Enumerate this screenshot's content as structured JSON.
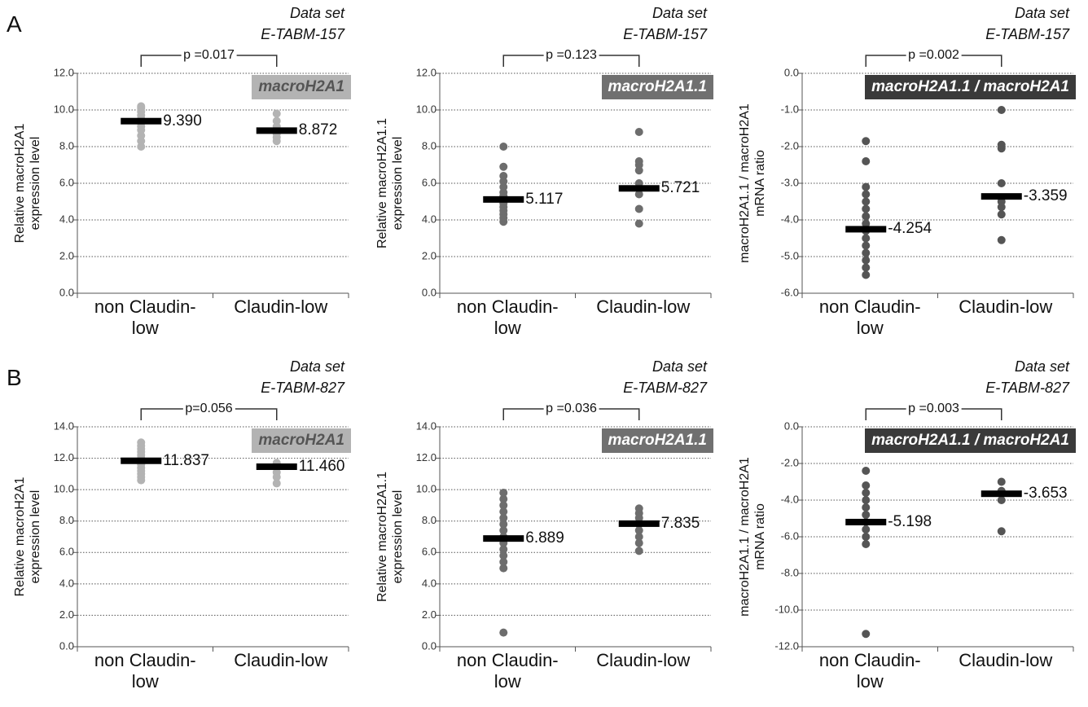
{
  "chart_data": [
    {
      "type": "strip",
      "panel": "A",
      "dataset_label": "Data set",
      "dataset_id": "E-TABM-157",
      "badge": "macroH2A1",
      "badge_color": "#b3b3b3",
      "badge_text_color": "#555555",
      "pvalue": "p =0.017",
      "ylabel": "Relative macroH2A1 expression level",
      "categories": [
        "non Claudin-low",
        "Claudin-low"
      ],
      "color": "#b3b3b3",
      "points": [
        [
          8.0,
          8.3,
          8.6,
          8.9,
          9.1,
          9.3,
          9.5,
          9.7,
          9.9,
          10.1,
          10.2
        ],
        [
          8.3,
          8.5,
          8.7,
          8.9,
          9.1,
          9.4,
          9.8
        ]
      ],
      "means": [
        9.39,
        8.872
      ],
      "mean_labels": [
        "9.390",
        "8.872"
      ],
      "ylim": [
        0,
        12
      ],
      "yticks": [
        {
          "value": 0,
          "label": "0.0"
        },
        {
          "value": 2,
          "label": "2.0"
        },
        {
          "value": 4,
          "label": "4.0"
        },
        {
          "value": 6,
          "label": "6.0"
        },
        {
          "value": 8,
          "label": "8.0"
        },
        {
          "value": 10,
          "label": "10.0"
        },
        {
          "value": 12,
          "label": "12.0"
        }
      ],
      "grid": true
    },
    {
      "type": "strip",
      "dataset_label": "Data set",
      "dataset_id": "E-TABM-157",
      "badge": "macroH2A1.1",
      "badge_color": "#707070",
      "badge_text_color": "#ffffff",
      "pvalue": "p =0.123",
      "ylabel": "Relative macroH2A1.1 expression level",
      "categories": [
        "non Claudin-low",
        "Claudin-low"
      ],
      "color": "#6d6d6d",
      "points": [
        [
          3.9,
          4.1,
          4.3,
          4.5,
          4.7,
          4.9,
          5.1,
          5.3,
          5.5,
          5.8,
          6.1,
          6.4,
          6.9,
          8.0
        ],
        [
          3.8,
          4.6,
          5.4,
          5.7,
          6.0,
          6.7,
          7.0,
          7.2,
          8.8
        ]
      ],
      "means": [
        5.117,
        5.721
      ],
      "mean_labels": [
        "5.117",
        "5.721"
      ],
      "ylim": [
        0,
        12
      ],
      "yticks": [
        {
          "value": 0,
          "label": "0.0"
        },
        {
          "value": 2,
          "label": "2.0"
        },
        {
          "value": 4,
          "label": "4.0"
        },
        {
          "value": 6,
          "label": "6.0"
        },
        {
          "value": 8,
          "label": "8.0"
        },
        {
          "value": 10,
          "label": "10.0"
        },
        {
          "value": 12,
          "label": "12.0"
        }
      ],
      "grid": true
    },
    {
      "type": "strip",
      "dataset_label": "Data set",
      "dataset_id": "E-TABM-157",
      "badge": "macroH2A1.1 / macroH2A1",
      "badge_color": "#3a3a3a",
      "badge_text_color": "#ffffff",
      "pvalue": "p =0.002",
      "ylabel": "macroH2A1.1 / macroH2A1 mRNA ratio",
      "categories": [
        "non Claudin-low",
        "Claudin-low"
      ],
      "color": "#555555",
      "points": [
        [
          -5.5,
          -5.3,
          -5.1,
          -4.9,
          -4.7,
          -4.5,
          -4.3,
          -4.1,
          -3.9,
          -3.7,
          -3.5,
          -3.3,
          -3.1,
          -2.4,
          -1.85
        ],
        [
          -4.55,
          -3.85,
          -3.65,
          -3.5,
          -3.0,
          -2.05,
          -1.95,
          -1.0
        ]
      ],
      "means": [
        -4.254,
        -3.359
      ],
      "mean_labels": [
        "-4.254",
        "-3.359"
      ],
      "ylim": [
        -6,
        0
      ],
      "yticks": [
        {
          "value": 0,
          "label": "0.0"
        },
        {
          "value": -1,
          "label": "-1.0"
        },
        {
          "value": -2,
          "label": "-2.0"
        },
        {
          "value": -3,
          "label": "-3.0"
        },
        {
          "value": -4,
          "label": "-4.0"
        },
        {
          "value": -5,
          "label": "-5.0"
        },
        {
          "value": -6,
          "label": "-6.0"
        }
      ],
      "grid": true
    },
    {
      "type": "strip",
      "panel": "B",
      "dataset_label": "Data set",
      "dataset_id": "E-TABM-827",
      "badge": "macroH2A1",
      "badge_color": "#b3b3b3",
      "badge_text_color": "#555555",
      "pvalue": "p=0.056",
      "ylabel": "Relative macroH2A1 expression level",
      "categories": [
        "non Claudin-low",
        "Claudin-low"
      ],
      "color": "#b3b3b3",
      "points": [
        [
          10.6,
          10.8,
          11.0,
          11.2,
          11.4,
          11.6,
          11.8,
          12.0,
          12.2,
          12.4,
          12.6,
          12.8,
          13.0
        ],
        [
          10.4,
          10.8,
          11.1,
          11.4,
          11.7
        ]
      ],
      "means": [
        11.837,
        11.46
      ],
      "mean_labels": [
        "11.837",
        "11.460"
      ],
      "ylim": [
        0,
        14
      ],
      "yticks": [
        {
          "value": 0,
          "label": "0.0"
        },
        {
          "value": 2,
          "label": "2.0"
        },
        {
          "value": 4,
          "label": "4.0"
        },
        {
          "value": 6,
          "label": "6.0"
        },
        {
          "value": 8,
          "label": "8.0"
        },
        {
          "value": 10,
          "label": "10.0"
        },
        {
          "value": 12,
          "label": "12.0"
        },
        {
          "value": 14,
          "label": "14.0"
        }
      ],
      "grid": true
    },
    {
      "type": "strip",
      "dataset_label": "Data set",
      "dataset_id": "E-TABM-827",
      "badge": "macroH2A1.1",
      "badge_color": "#707070",
      "badge_text_color": "#ffffff",
      "pvalue": "p =0.036",
      "ylabel": "Relative macroH2A1.1 expression level",
      "categories": [
        "non Claudin-low",
        "Claudin-low"
      ],
      "color": "#6d6d6d",
      "points": [
        [
          0.9,
          5.0,
          5.4,
          5.8,
          6.2,
          6.6,
          7.0,
          7.4,
          7.8,
          8.2,
          8.6,
          9.0,
          9.4,
          9.8
        ],
        [
          6.1,
          6.6,
          7.0,
          7.4,
          7.8,
          8.2,
          8.5,
          8.8
        ]
      ],
      "means": [
        6.889,
        7.835
      ],
      "mean_labels": [
        "6.889",
        "7.835"
      ],
      "ylim": [
        0,
        14
      ],
      "yticks": [
        {
          "value": 0,
          "label": "0.0"
        },
        {
          "value": 2,
          "label": "2.0"
        },
        {
          "value": 4,
          "label": "4.0"
        },
        {
          "value": 6,
          "label": "6.0"
        },
        {
          "value": 8,
          "label": "8.0"
        },
        {
          "value": 10,
          "label": "10.0"
        },
        {
          "value": 12,
          "label": "12.0"
        },
        {
          "value": 14,
          "label": "14.0"
        }
      ],
      "grid": true
    },
    {
      "type": "strip",
      "dataset_label": "Data set",
      "dataset_id": "E-TABM-827",
      "badge": "macroH2A1.1 / macroH2A1",
      "badge_color": "#3a3a3a",
      "badge_text_color": "#ffffff",
      "pvalue": "p =0.003",
      "ylabel": "macroH2A1.1 / macroH2A1 mRNA ratio",
      "categories": [
        "non Claudin-low",
        "Claudin-low"
      ],
      "color": "#555555",
      "points": [
        [
          -11.3,
          -6.4,
          -6.0,
          -5.6,
          -5.2,
          -4.8,
          -4.4,
          -4.0,
          -3.6,
          -3.2,
          -2.4
        ],
        [
          -5.7,
          -4.0,
          -3.5,
          -3.0
        ]
      ],
      "means": [
        -5.198,
        -3.653
      ],
      "mean_labels": [
        "-5.198",
        "-3.653"
      ],
      "ylim": [
        -12,
        0
      ],
      "yticks": [
        {
          "value": 0,
          "label": "0.0"
        },
        {
          "value": -2,
          "label": "-2.0"
        },
        {
          "value": -4,
          "label": "-4.0"
        },
        {
          "value": -6,
          "label": "-6.0"
        },
        {
          "value": -8,
          "label": "-8.0"
        },
        {
          "value": -10,
          "label": "-10.0"
        },
        {
          "value": -12,
          "label": "-12.0"
        }
      ],
      "grid": true
    }
  ]
}
